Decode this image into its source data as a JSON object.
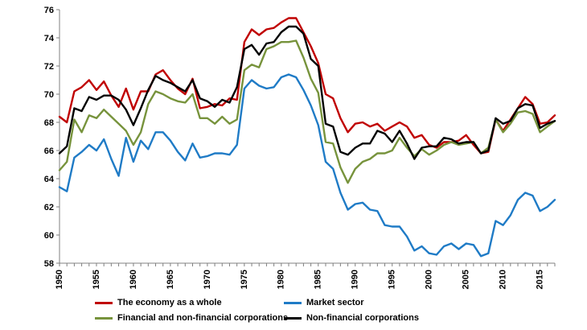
{
  "chart_data": {
    "type": "line",
    "title": "",
    "xlabel": "",
    "ylabel": "",
    "xlim": [
      1950,
      2017
    ],
    "ylim": [
      58,
      76
    ],
    "x_ticks": [
      1950,
      1955,
      1960,
      1965,
      1970,
      1975,
      1980,
      1985,
      1990,
      1995,
      2000,
      2005,
      2010,
      2015
    ],
    "y_ticks": [
      58,
      60,
      62,
      64,
      66,
      68,
      70,
      72,
      74,
      76
    ],
    "grid": false,
    "legend_position": "bottom",
    "x": [
      1950,
      1951,
      1952,
      1953,
      1954,
      1955,
      1956,
      1957,
      1958,
      1959,
      1960,
      1961,
      1962,
      1963,
      1964,
      1965,
      1966,
      1967,
      1968,
      1969,
      1970,
      1971,
      1972,
      1973,
      1974,
      1975,
      1976,
      1977,
      1978,
      1979,
      1980,
      1981,
      1982,
      1983,
      1984,
      1985,
      1986,
      1987,
      1988,
      1989,
      1990,
      1991,
      1992,
      1993,
      1994,
      1995,
      1996,
      1997,
      1998,
      1999,
      2000,
      2001,
      2002,
      2003,
      2004,
      2005,
      2006,
      2007,
      2008,
      2009,
      2010,
      2011,
      2012,
      2013,
      2014,
      2015,
      2016,
      2017
    ],
    "series": [
      {
        "name": "The economy as a whole",
        "color": "#c00000",
        "values": [
          68.4,
          68.0,
          70.2,
          70.5,
          71.0,
          70.3,
          70.9,
          69.9,
          69.1,
          70.4,
          68.9,
          70.2,
          70.2,
          71.4,
          71.7,
          71.0,
          70.4,
          70.0,
          71.1,
          69.0,
          69.1,
          69.3,
          69.2,
          69.7,
          69.6,
          73.7,
          74.6,
          74.2,
          74.6,
          74.7,
          75.1,
          75.4,
          75.4,
          74.4,
          73.4,
          72.2,
          70.0,
          69.7,
          68.3,
          67.3,
          67.9,
          68.0,
          67.7,
          67.9,
          67.4,
          67.7,
          68.0,
          67.7,
          66.9,
          67.1,
          66.4,
          66.2,
          66.6,
          66.6,
          66.7,
          67.1,
          66.4,
          65.8,
          65.9,
          68.2,
          67.4,
          68.2,
          69.0,
          69.8,
          69.3,
          67.9,
          68.0,
          68.5
        ]
      },
      {
        "name": "Market sector",
        "color": "#1f7bc6",
        "values": [
          63.4,
          63.1,
          65.5,
          65.9,
          66.4,
          66.0,
          66.8,
          65.4,
          64.2,
          66.9,
          65.2,
          66.7,
          66.1,
          67.3,
          67.3,
          66.7,
          65.9,
          65.3,
          66.5,
          65.5,
          65.6,
          65.8,
          65.8,
          65.7,
          66.4,
          70.4,
          71.0,
          70.6,
          70.4,
          70.5,
          71.2,
          71.4,
          71.2,
          70.3,
          69.2,
          67.8,
          65.2,
          64.7,
          63.0,
          61.8,
          62.2,
          62.3,
          61.8,
          61.7,
          60.7,
          60.6,
          60.6,
          59.9,
          58.9,
          59.2,
          58.7,
          58.6,
          59.2,
          59.4,
          59.0,
          59.4,
          59.3,
          58.5,
          58.7,
          61.0,
          60.7,
          61.4,
          62.5,
          63.0,
          62.8,
          61.7,
          62.0,
          62.5
        ]
      },
      {
        "name": "Financial and non-financial corporations",
        "color": "#77933c",
        "values": [
          64.6,
          65.2,
          68.2,
          67.3,
          68.5,
          68.3,
          68.9,
          68.4,
          67.9,
          67.4,
          66.4,
          67.3,
          69.3,
          70.2,
          70.0,
          69.7,
          69.5,
          69.4,
          70.0,
          68.3,
          68.3,
          67.9,
          68.4,
          67.9,
          68.2,
          71.7,
          72.1,
          71.9,
          73.2,
          73.4,
          73.7,
          73.7,
          73.8,
          72.6,
          71.1,
          70.1,
          66.6,
          66.5,
          64.8,
          63.7,
          64.7,
          65.2,
          65.4,
          65.8,
          65.8,
          66.0,
          66.9,
          66.2,
          65.6,
          66.1,
          65.7,
          66.0,
          66.4,
          66.6,
          66.4,
          66.5,
          66.6,
          65.8,
          66.2,
          68.2,
          67.3,
          67.9,
          68.7,
          68.8,
          68.6,
          67.3,
          67.7,
          68.1
        ]
      },
      {
        "name": "Non-financial corporations",
        "color": "#000000",
        "values": [
          65.8,
          66.3,
          69.0,
          68.8,
          69.8,
          69.6,
          69.9,
          69.9,
          69.6,
          68.9,
          67.8,
          69.0,
          70.3,
          71.3,
          71.0,
          70.8,
          70.5,
          70.2,
          71.0,
          69.7,
          69.5,
          69.1,
          69.6,
          69.4,
          70.5,
          73.2,
          73.5,
          72.8,
          73.6,
          73.7,
          74.4,
          74.8,
          74.8,
          74.3,
          72.5,
          72.0,
          67.9,
          67.7,
          65.9,
          65.7,
          66.2,
          66.5,
          66.5,
          67.4,
          67.2,
          66.6,
          67.4,
          66.5,
          65.4,
          66.2,
          66.3,
          66.3,
          66.9,
          66.8,
          66.5,
          66.6,
          66.6,
          65.8,
          66.0,
          68.3,
          67.9,
          68.1,
          69.0,
          69.3,
          69.2,
          67.6,
          67.9,
          68.1
        ]
      }
    ]
  }
}
